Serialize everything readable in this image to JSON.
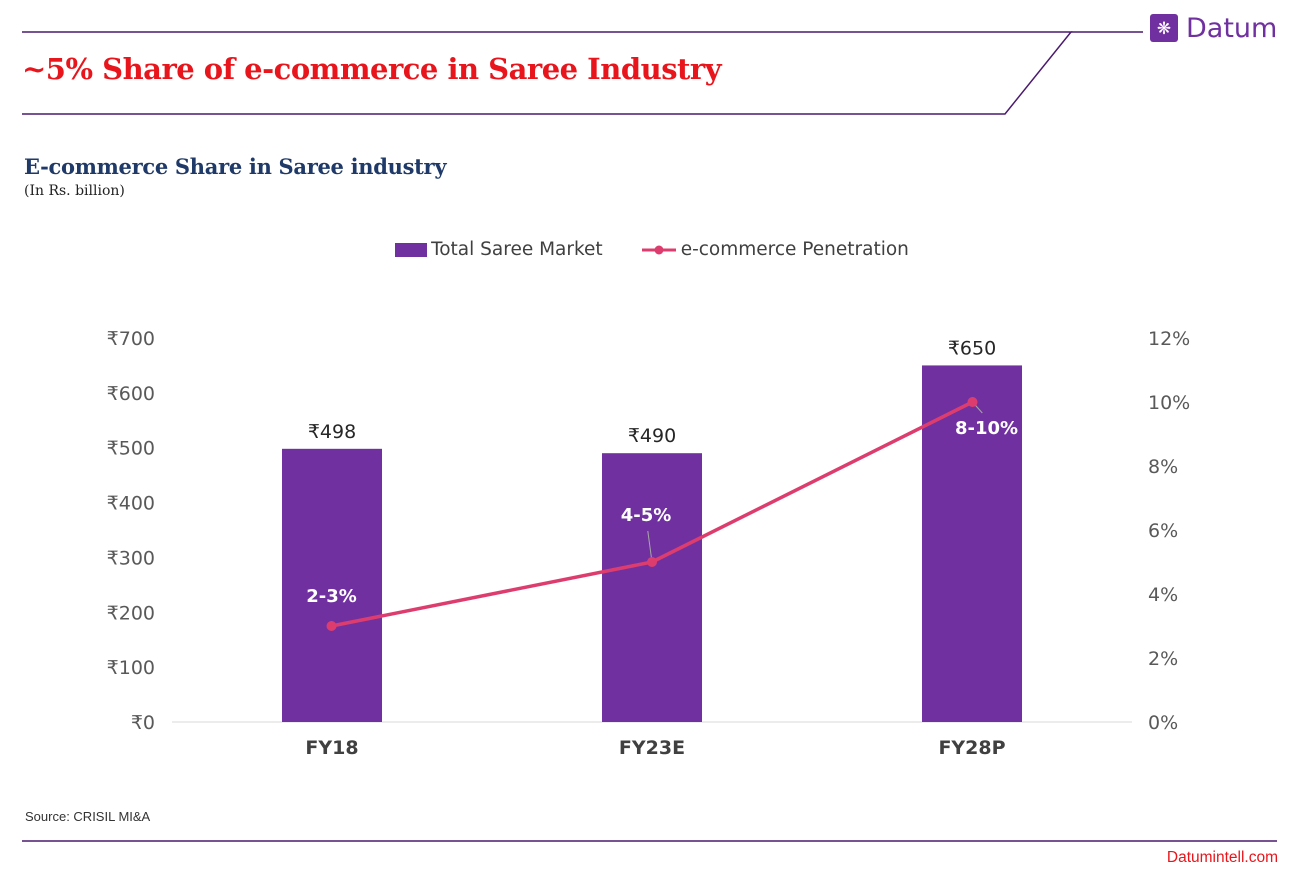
{
  "title": "~5% Share of e-commerce in Saree Industry",
  "brand": {
    "name": "Datum",
    "icon": "snowflake-icon",
    "mark_glyph": "❋"
  },
  "colors": {
    "title": "#e8161c",
    "purple": "#7030a0",
    "line": "#dd3d6e",
    "navy": "#1f3a68",
    "frame": "#4b1a6e",
    "axis": "#595959",
    "label": "#404040"
  },
  "source": "Source: CRISIL MI&A",
  "website": "Datumintell.com",
  "chart_data": {
    "type": "bar",
    "title": "E-commerce Share in Saree industry",
    "subtitle": "(In Rs. billion)",
    "categories": [
      "FY18",
      "FY23E",
      "FY28P"
    ],
    "series": [
      {
        "name": "Total Saree Market",
        "type": "bar",
        "axis": "left",
        "values": [
          498,
          490,
          650
        ],
        "labels": [
          "₹498",
          "₹490",
          "₹650"
        ]
      },
      {
        "name": "e-commerce Penetration",
        "type": "line",
        "axis": "right",
        "values": [
          3,
          5,
          10
        ],
        "labels": [
          "2-3%",
          "4-5%",
          "8-10%"
        ]
      }
    ],
    "ylim": [
      0,
      700
    ],
    "y_ticks": [
      0,
      100,
      200,
      300,
      400,
      500,
      600,
      700
    ],
    "y_tick_labels": [
      "₹0",
      "₹100",
      "₹200",
      "₹300",
      "₹400",
      "₹500",
      "₹600",
      "₹700"
    ],
    "y2lim": [
      0,
      12
    ],
    "y2_ticks": [
      0,
      2,
      4,
      6,
      8,
      10,
      12
    ],
    "y2_tick_labels": [
      "0%",
      "2%",
      "4%",
      "6%",
      "8%",
      "10%",
      "12%"
    ],
    "grid": false,
    "legend": "top-center"
  }
}
